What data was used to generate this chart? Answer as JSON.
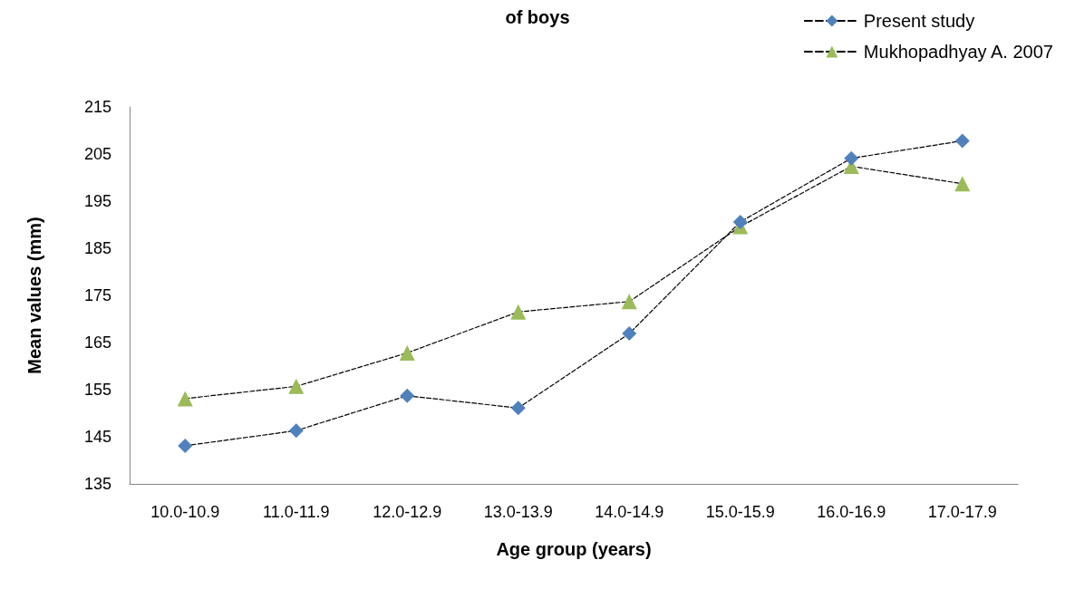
{
  "chart_data": {
    "type": "line",
    "title": "of boys",
    "xlabel": "Age group (years)",
    "ylabel": "Mean values (mm)",
    "categories": [
      "10.0-10.9",
      "11.0-11.9",
      "12.0-12.9",
      "13.0-13.9",
      "14.0-14.9",
      "15.0-15.9",
      "16.0-16.9",
      "17.0-17.9"
    ],
    "series": [
      {
        "name": "Present study",
        "color": "#4f81bd",
        "marker": "diamond",
        "values": [
          143.1,
          146.3,
          153.7,
          151.1,
          166.9,
          190.6,
          204.1,
          207.8
        ]
      },
      {
        "name": "Mukhopadhyay A. 2007",
        "color": "#9bbb59",
        "marker": "triangle",
        "values": [
          153.1,
          155.7,
          162.8,
          171.5,
          173.7,
          189.6,
          202.4,
          198.7
        ]
      }
    ],
    "line_style": "dashed",
    "ylim": [
      135,
      215
    ],
    "yticks": [
      135,
      145,
      155,
      165,
      175,
      185,
      195,
      205,
      215
    ],
    "grid": false,
    "legend": "top right"
  }
}
